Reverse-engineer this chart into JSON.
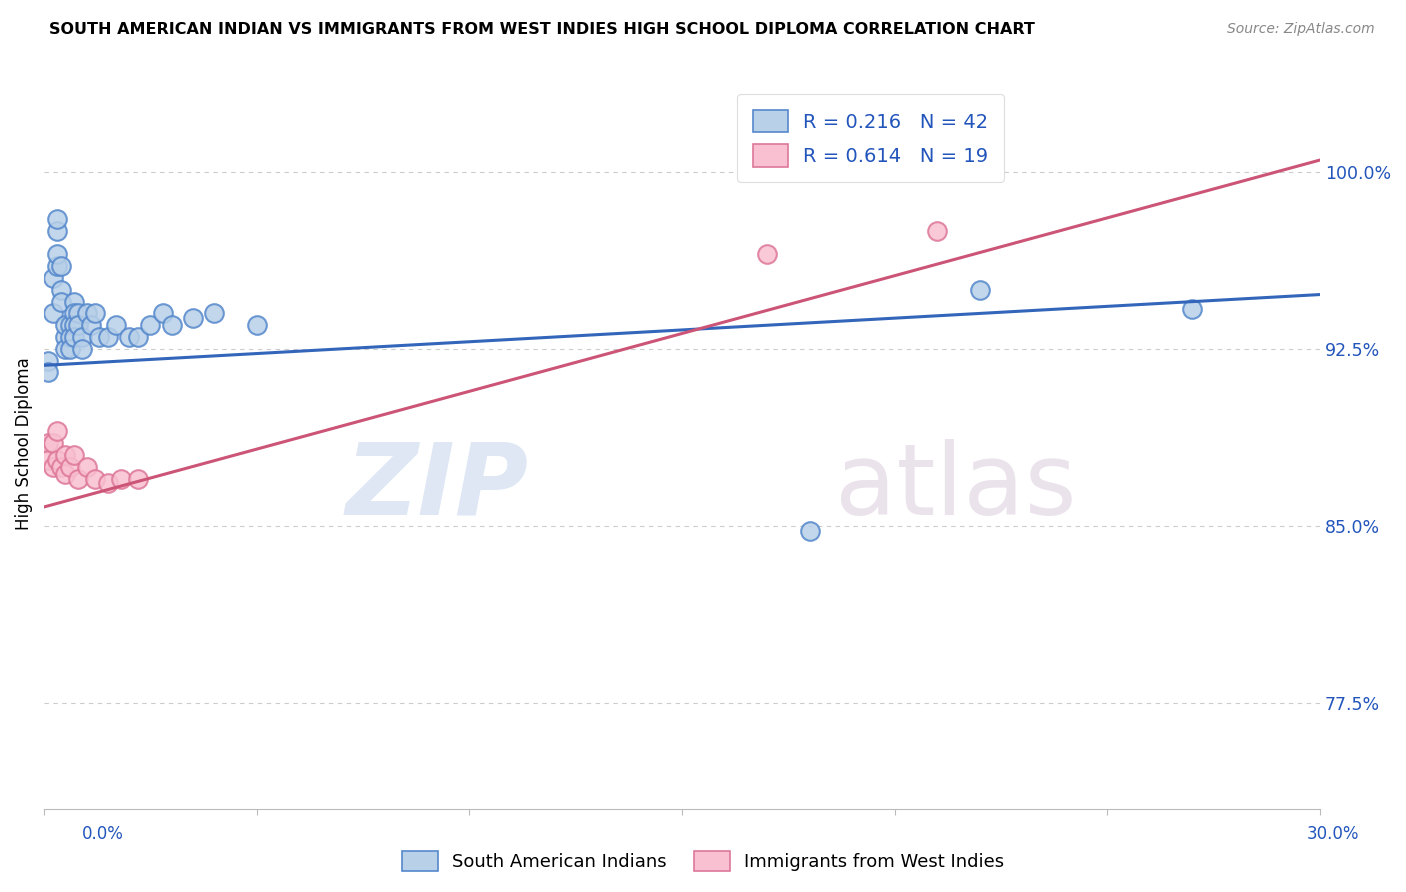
{
  "title": "SOUTH AMERICAN INDIAN VS IMMIGRANTS FROM WEST INDIES HIGH SCHOOL DIPLOMA CORRELATION CHART",
  "source": "Source: ZipAtlas.com",
  "ylabel": "High School Diploma",
  "ytick_values": [
    0.775,
    0.85,
    0.925,
    1.0
  ],
  "ytick_labels": [
    "77.5%",
    "85.0%",
    "92.5%",
    "100.0%"
  ],
  "xmin": 0.0,
  "xmax": 0.3,
  "ymin": 0.73,
  "ymax": 1.04,
  "blue_R": 0.216,
  "blue_N": 42,
  "pink_R": 0.614,
  "pink_N": 19,
  "legend_label_blue": "South American Indians",
  "legend_label_pink": "Immigrants from West Indies",
  "blue_color": "#b8d0e8",
  "blue_edge_color": "#5588cc",
  "blue_line_color": "#3366bb",
  "pink_color": "#f8c0d0",
  "pink_edge_color": "#dd7799",
  "pink_line_color": "#cc5577",
  "watermark_zip": "ZIP",
  "watermark_atlas": "atlas",
  "blue_x": [
    0.001,
    0.001,
    0.002,
    0.002,
    0.003,
    0.003,
    0.003,
    0.003,
    0.004,
    0.004,
    0.004,
    0.005,
    0.005,
    0.005,
    0.006,
    0.006,
    0.006,
    0.007,
    0.007,
    0.007,
    0.007,
    0.008,
    0.008,
    0.009,
    0.009,
    0.01,
    0.011,
    0.012,
    0.013,
    0.015,
    0.017,
    0.02,
    0.022,
    0.025,
    0.028,
    0.03,
    0.035,
    0.04,
    0.05,
    0.18,
    0.22,
    0.27
  ],
  "blue_y": [
    0.92,
    0.915,
    0.94,
    0.955,
    0.96,
    0.965,
    0.975,
    0.98,
    0.95,
    0.945,
    0.96,
    0.93,
    0.935,
    0.925,
    0.935,
    0.93,
    0.925,
    0.945,
    0.94,
    0.935,
    0.93,
    0.94,
    0.935,
    0.93,
    0.925,
    0.94,
    0.935,
    0.94,
    0.93,
    0.93,
    0.935,
    0.93,
    0.93,
    0.935,
    0.94,
    0.935,
    0.938,
    0.94,
    0.935,
    0.848,
    0.95,
    0.942
  ],
  "pink_x": [
    0.001,
    0.001,
    0.002,
    0.002,
    0.003,
    0.003,
    0.004,
    0.005,
    0.005,
    0.006,
    0.007,
    0.008,
    0.01,
    0.012,
    0.015,
    0.018,
    0.022,
    0.17,
    0.21
  ],
  "pink_y": [
    0.885,
    0.878,
    0.885,
    0.875,
    0.89,
    0.878,
    0.875,
    0.88,
    0.872,
    0.875,
    0.88,
    0.87,
    0.875,
    0.87,
    0.868,
    0.87,
    0.87,
    0.965,
    0.975
  ],
  "blue_line_x0": 0.0,
  "blue_line_x1": 0.3,
  "blue_line_y0": 0.918,
  "blue_line_y1": 0.948,
  "pink_line_x0": 0.0,
  "pink_line_x1": 0.3,
  "pink_line_y0": 0.858,
  "pink_line_y1": 1.005
}
